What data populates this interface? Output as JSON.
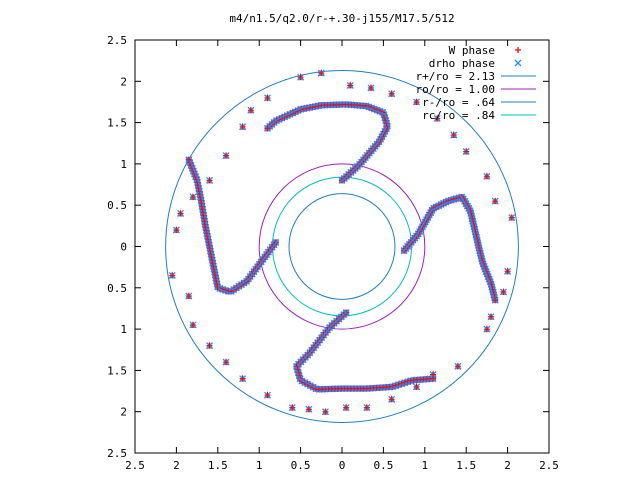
{
  "chart_data": {
    "type": "scatter",
    "title": "m4/n1.5/q2.0/r-+.30-j155/M17.5/512",
    "xlabel": "",
    "ylabel": "",
    "xlim": [
      -2.5,
      2.5
    ],
    "ylim": [
      -2.5,
      2.5
    ],
    "x_ticks": [
      -2.5,
      -2,
      -1.5,
      -1,
      -0.5,
      0,
      0.5,
      1,
      1.5,
      2,
      2.5
    ],
    "x_tick_labels": [
      "2.5",
      "2",
      "1.5",
      "1",
      "0.5",
      "0",
      "0.5",
      "1",
      "1.5",
      "2",
      "2.5"
    ],
    "y_ticks": [
      -2.5,
      -2,
      -1.5,
      -1,
      -0.5,
      0,
      0.5,
      1,
      1.5,
      2,
      2.5
    ],
    "y_tick_labels": [
      "2.5",
      "2",
      "1.5",
      "1",
      "0.5",
      "0",
      "0.5",
      "1",
      "1.5",
      "2",
      "2.5"
    ],
    "grid": false,
    "legend_position": "top-right",
    "legend": [
      {
        "label": "W phase",
        "kind": "plus",
        "color": "#ff0000"
      },
      {
        "label": "drho phase",
        "kind": "cross",
        "color": "#1e90ff"
      },
      {
        "label": "r+/ro = 2.13",
        "kind": "line",
        "color": "#1f7fc4"
      },
      {
        "label": "ro/ro = 1.00",
        "kind": "line",
        "color": "#a020c0"
      },
      {
        "label": "r-/ro = .64",
        "kind": "line",
        "color": "#1f7fc4"
      },
      {
        "label": "rc/ro = .84",
        "kind": "line",
        "color": "#00c0c0"
      }
    ],
    "circles": [
      {
        "name": "r+/ro",
        "radius": 2.13,
        "color": "#1f7fc4"
      },
      {
        "name": "ro/ro",
        "radius": 1.0,
        "color": "#a020c0"
      },
      {
        "name": "r-/ro",
        "radius": 0.64,
        "color": "#1f7fc4"
      },
      {
        "name": "rc/ro",
        "radius": 0.84,
        "color": "#00c0c0"
      }
    ],
    "arms": [
      {
        "series": "arm-1",
        "points": [
          [
            0.0,
            0.8
          ],
          [
            0.2,
            0.98
          ],
          [
            0.45,
            1.27
          ],
          [
            0.55,
            1.45
          ],
          [
            0.5,
            1.62
          ],
          [
            0.3,
            1.7
          ],
          [
            0.05,
            1.72
          ],
          [
            -0.25,
            1.71
          ],
          [
            -0.5,
            1.66
          ],
          [
            -0.8,
            1.52
          ],
          [
            -0.9,
            1.43
          ]
        ]
      },
      {
        "series": "arm-2",
        "points": [
          [
            0.75,
            -0.05
          ],
          [
            0.92,
            0.15
          ],
          [
            1.1,
            0.46
          ],
          [
            1.28,
            0.55
          ],
          [
            1.45,
            0.6
          ],
          [
            1.55,
            0.43
          ],
          [
            1.6,
            0.22
          ],
          [
            1.65,
            0.0
          ],
          [
            1.7,
            -0.2
          ],
          [
            1.8,
            -0.45
          ],
          [
            1.85,
            -0.65
          ]
        ]
      },
      {
        "series": "arm-3",
        "points": [
          [
            0.05,
            -0.8
          ],
          [
            -0.15,
            -0.98
          ],
          [
            -0.4,
            -1.3
          ],
          [
            -0.55,
            -1.45
          ],
          [
            -0.5,
            -1.62
          ],
          [
            -0.3,
            -1.73
          ],
          [
            0.0,
            -1.72
          ],
          [
            0.3,
            -1.72
          ],
          [
            0.6,
            -1.7
          ],
          [
            0.85,
            -1.62
          ],
          [
            1.1,
            -1.6
          ]
        ]
      },
      {
        "series": "arm-4",
        "points": [
          [
            -0.8,
            0.05
          ],
          [
            -0.95,
            -0.15
          ],
          [
            -1.15,
            -0.42
          ],
          [
            -1.35,
            -0.55
          ],
          [
            -1.5,
            -0.5
          ],
          [
            -1.55,
            -0.25
          ],
          [
            -1.6,
            0.0
          ],
          [
            -1.65,
            0.25
          ],
          [
            -1.7,
            0.55
          ],
          [
            -1.75,
            0.8
          ],
          [
            -1.85,
            1.05
          ]
        ]
      }
    ],
    "outer_points": [
      [
        -0.9,
        1.8
      ],
      [
        -1.1,
        1.65
      ],
      [
        -1.2,
        1.45
      ],
      [
        -1.4,
        1.1
      ],
      [
        -1.6,
        0.8
      ],
      [
        -1.8,
        0.6
      ],
      [
        -1.95,
        0.4
      ],
      [
        -2.0,
        0.2
      ],
      [
        -2.05,
        -0.35
      ],
      [
        -1.85,
        -0.6
      ],
      [
        -1.8,
        -0.95
      ],
      [
        -1.6,
        -1.2
      ],
      [
        -1.4,
        -1.4
      ],
      [
        -1.2,
        -1.6
      ],
      [
        -0.9,
        -1.8
      ],
      [
        -0.6,
        -1.95
      ],
      [
        -0.4,
        -1.97
      ],
      [
        -0.2,
        -2.0
      ],
      [
        0.05,
        -1.95
      ],
      [
        0.3,
        -1.95
      ],
      [
        0.6,
        -1.85
      ],
      [
        0.9,
        -1.7
      ],
      [
        1.1,
        -1.55
      ],
      [
        1.4,
        -1.45
      ],
      [
        1.75,
        -1.0
      ],
      [
        1.8,
        -0.85
      ],
      [
        1.95,
        -0.55
      ],
      [
        2.0,
        -0.3
      ],
      [
        2.05,
        0.35
      ],
      [
        1.85,
        0.55
      ],
      [
        1.75,
        0.85
      ],
      [
        1.5,
        1.15
      ],
      [
        1.35,
        1.35
      ],
      [
        1.15,
        1.55
      ],
      [
        0.9,
        1.75
      ],
      [
        0.6,
        1.85
      ],
      [
        0.35,
        1.92
      ],
      [
        0.1,
        1.95
      ],
      [
        -0.25,
        2.1
      ],
      [
        -0.5,
        2.05
      ]
    ]
  }
}
